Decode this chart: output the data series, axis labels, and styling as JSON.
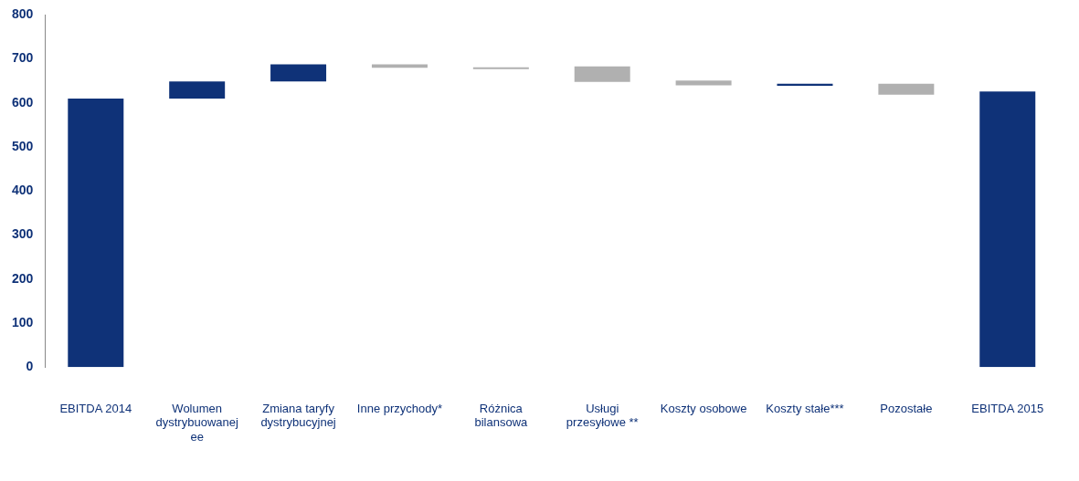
{
  "chart_data": {
    "type": "bar",
    "categories": [
      "EBITDA 2014",
      "Wolumen dystrybuowanej ee",
      "Zmiana taryfy dystrybucyjnej",
      "Inne przychody*",
      "Różnica bilansowa",
      "Usługi przesyłowe **",
      "Koszty osobowe",
      "Koszty stałe***",
      "Pozostałe",
      "EBITDA 2015"
    ],
    "base": [
      0,
      610,
      649,
      680,
      677,
      648,
      640,
      639,
      619,
      0
    ],
    "values": [
      610,
      39,
      39,
      8,
      4,
      35,
      11,
      5,
      25,
      626
    ],
    "colors": [
      "#0f3278",
      "#0f3278",
      "#0f3278",
      "#b0b0b0",
      "#b0b0b0",
      "#b0b0b0",
      "#b0b0b0",
      "#0f3278",
      "#b0b0b0",
      "#0f3278"
    ],
    "ylim": [
      0,
      800
    ],
    "yticks": [
      0,
      100,
      200,
      300,
      400,
      500,
      600,
      700,
      800
    ],
    "grid": false,
    "legend": false
  }
}
